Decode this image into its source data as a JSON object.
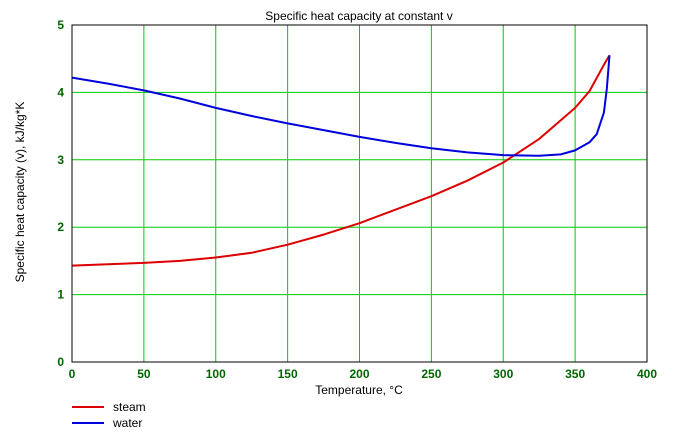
{
  "chart_data": {
    "type": "line",
    "title": "Specific heat capacity at constant v",
    "xlabel": "Temperature, °C",
    "ylabel": "Specific heat capacity (v), kJ/kg*K",
    "xlim": [
      0,
      400
    ],
    "ylim": [
      0,
      5
    ],
    "xticks": [
      0,
      50,
      100,
      150,
      200,
      250,
      300,
      350,
      400
    ],
    "yticks": [
      0,
      1,
      2,
      3,
      4,
      5
    ],
    "xtick_labels": [
      "0",
      "50",
      "100",
      "150",
      "200",
      "250",
      "300",
      "350",
      "400"
    ],
    "ytick_labels": [
      "0",
      "1",
      "2",
      "3",
      "4",
      "5"
    ],
    "grid": true,
    "legend_position": "bottom-left",
    "colors": {
      "grid": "#00cc00",
      "tick_labels": "#006600",
      "axes": "#000000"
    },
    "series": [
      {
        "name": "steam",
        "color": "#dd0000",
        "x": [
          0,
          25,
          50,
          75,
          100,
          125,
          150,
          175,
          200,
          225,
          250,
          275,
          300,
          325,
          350,
          360,
          370,
          373.9
        ],
        "y": [
          1.43,
          1.45,
          1.47,
          1.5,
          1.55,
          1.62,
          1.74,
          1.89,
          2.06,
          2.26,
          2.46,
          2.69,
          2.96,
          3.31,
          3.77,
          4.02,
          4.41,
          4.55
        ]
      },
      {
        "name": "water",
        "color": "#0000dd",
        "x": [
          0,
          25,
          50,
          75,
          100,
          125,
          150,
          175,
          200,
          225,
          250,
          275,
          300,
          325,
          340,
          350,
          360,
          365,
          370,
          372,
          373.9
        ],
        "y": [
          4.22,
          4.13,
          4.03,
          3.91,
          3.77,
          3.65,
          3.54,
          3.44,
          3.34,
          3.25,
          3.17,
          3.11,
          3.07,
          3.06,
          3.08,
          3.14,
          3.26,
          3.38,
          3.7,
          4.05,
          4.55
        ]
      }
    ]
  }
}
